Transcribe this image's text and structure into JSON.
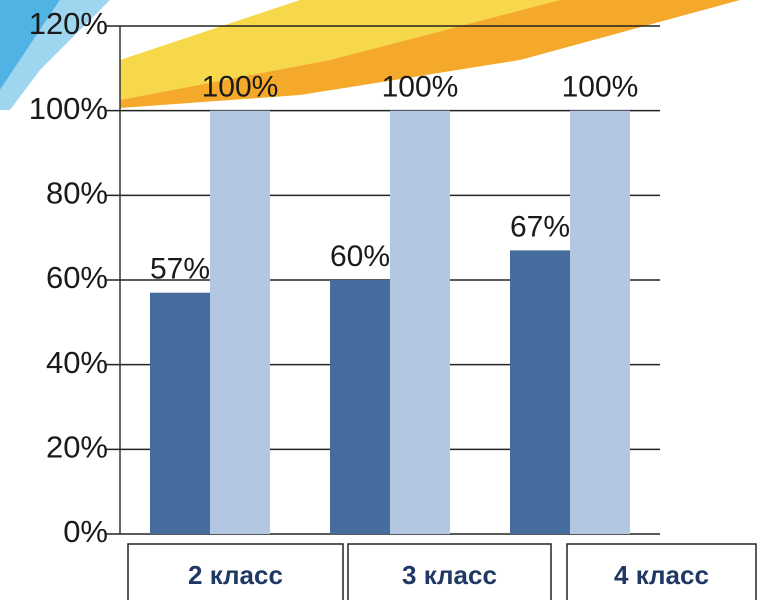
{
  "chart_data": {
    "type": "bar",
    "categories": [
      "2 класс",
      "3 класс",
      "4 класс"
    ],
    "series": [
      {
        "color": "#466c9e",
        "values": [
          57,
          60,
          67
        ],
        "value_labels": [
          "57%",
          "60%",
          "67%"
        ]
      },
      {
        "color": "#b3c7e2",
        "values": [
          100,
          100,
          100
        ],
        "value_labels": [
          "100%",
          "100%",
          "100%"
        ]
      }
    ],
    "ylim": [
      0,
      120
    ],
    "yticks": [
      {
        "value": 0,
        "label": "0%"
      },
      {
        "value": 20,
        "label": "20%"
      },
      {
        "value": 40,
        "label": "40%"
      },
      {
        "value": 60,
        "label": "60%"
      },
      {
        "value": 80,
        "label": "80%"
      },
      {
        "value": 100,
        "label": "100%"
      },
      {
        "value": 120,
        "label": "120%"
      }
    ],
    "grid": true
  }
}
